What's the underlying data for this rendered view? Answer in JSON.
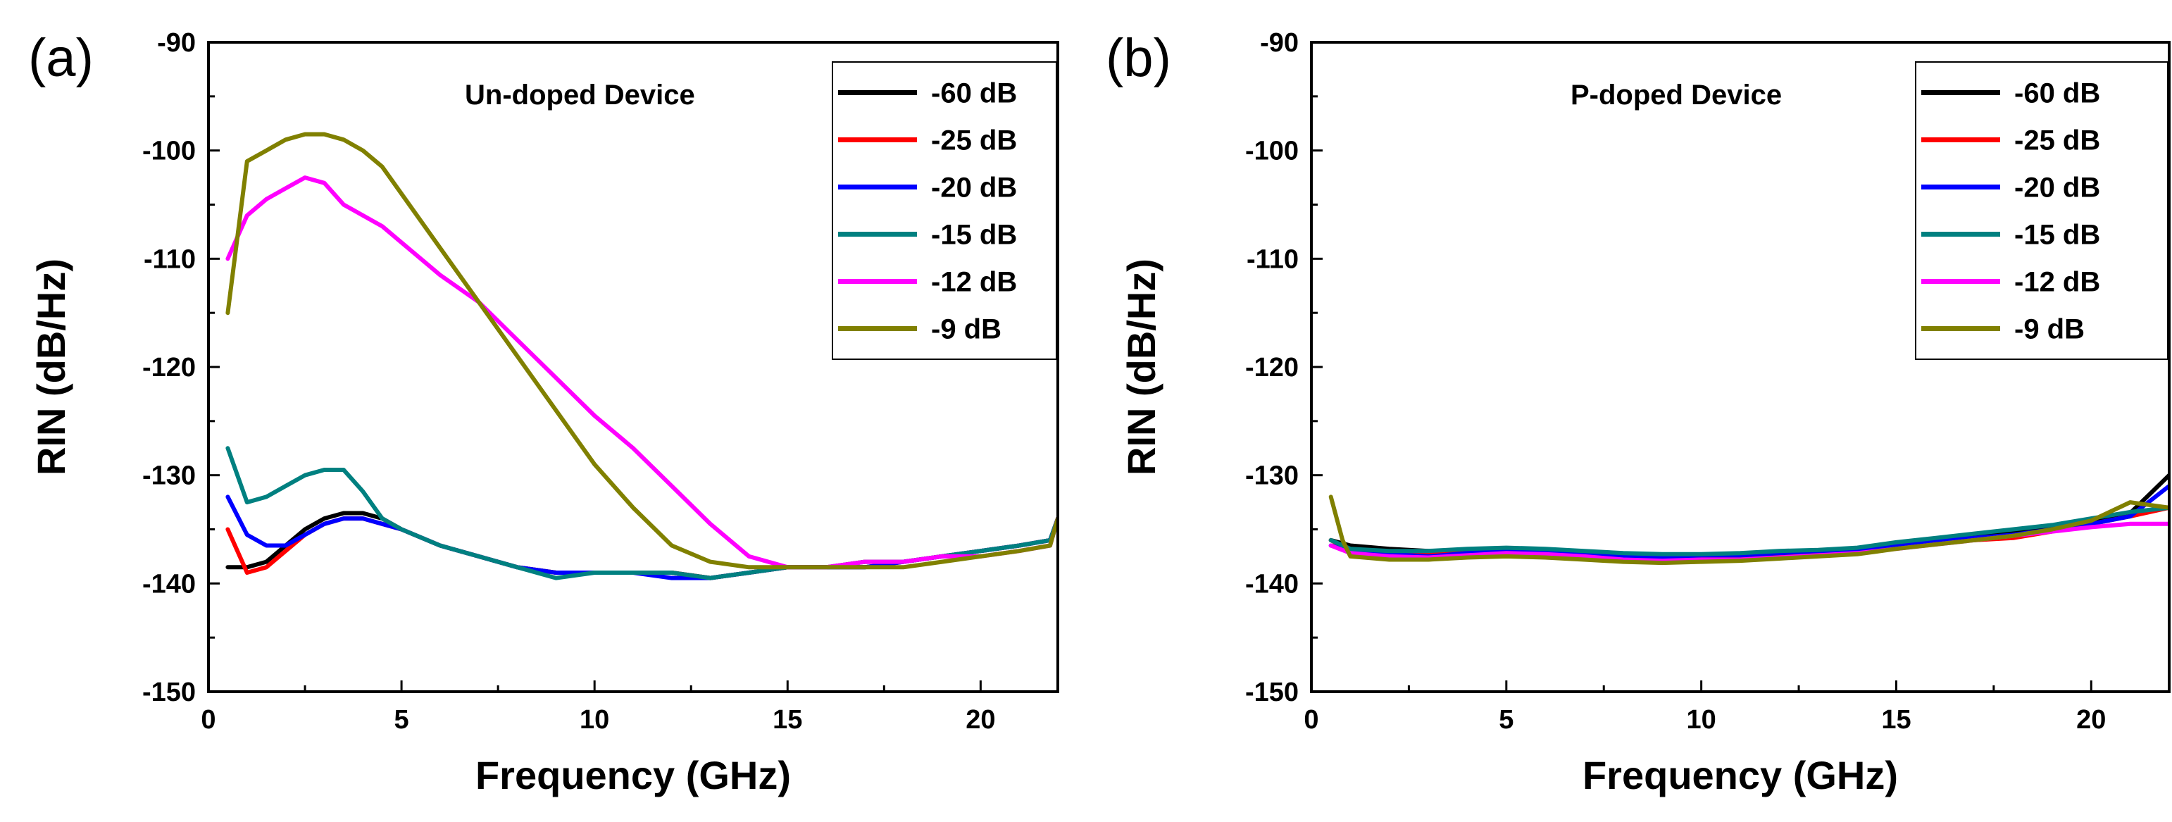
{
  "chart_data": [
    {
      "type": "line",
      "panel_label": "(a)",
      "annotation": "Un-doped Device",
      "xlabel": "Frequency (GHz)",
      "ylabel": "RIN (dB/Hz)",
      "xlim": [
        0,
        22
      ],
      "ylim": [
        -150,
        -90
      ],
      "xticks": [
        0,
        5,
        10,
        15,
        20
      ],
      "yticks": [
        -150,
        -140,
        -130,
        -120,
        -110,
        -100,
        -90
      ],
      "grid": false,
      "legend_position": "top-right",
      "series": [
        {
          "name": "-60 dB",
          "color": "#000000",
          "x": [
            0.5,
            1,
            1.5,
            2,
            2.5,
            3,
            3.5,
            4,
            4.5,
            5,
            6,
            7,
            8,
            9,
            10,
            11,
            12,
            13,
            14,
            15,
            16,
            17,
            18,
            19,
            20,
            21,
            21.8,
            22
          ],
          "y": [
            -138.5,
            -138.5,
            -138,
            -136.5,
            -135,
            -134,
            -133.5,
            -133.5,
            -134,
            -135,
            -136.5,
            -137.5,
            -138.5,
            -139,
            -139,
            -139,
            -139,
            -139.5,
            -139,
            -138.5,
            -138.5,
            -138.5,
            -138,
            -137.5,
            -137,
            -136.5,
            -136,
            -134
          ]
        },
        {
          "name": "-25 dB",
          "color": "#ff0000",
          "x": [
            0.5,
            1,
            1.5,
            2,
            2.5,
            3,
            3.5,
            4,
            4.5,
            5,
            6,
            7,
            8,
            9,
            10,
            11,
            12,
            13,
            14,
            15,
            16,
            17,
            18,
            19,
            20,
            21,
            21.8,
            22
          ],
          "y": [
            -135,
            -139,
            -138.5,
            -137,
            -135.5,
            -134.5,
            -134,
            -134,
            -134.5,
            -135,
            -136.5,
            -137.5,
            -138.5,
            -139,
            -139,
            -139,
            -139,
            -139.5,
            -139,
            -138.5,
            -138.5,
            -138,
            -138,
            -137.5,
            -137,
            -136.5,
            -136,
            -134
          ]
        },
        {
          "name": "-20 dB",
          "color": "#0000ff",
          "x": [
            0.5,
            1,
            1.5,
            2,
            2.5,
            3,
            3.5,
            4,
            4.5,
            5,
            6,
            7,
            8,
            9,
            10,
            11,
            12,
            13,
            14,
            15,
            16,
            17,
            18,
            19,
            20,
            21,
            21.8,
            22
          ],
          "y": [
            -132,
            -135.5,
            -136.5,
            -136.5,
            -135.5,
            -134.5,
            -134,
            -134,
            -134.5,
            -135,
            -136.5,
            -137.5,
            -138.5,
            -139,
            -139,
            -139,
            -139.5,
            -139.5,
            -139,
            -138.5,
            -138.5,
            -138.5,
            -138,
            -137.5,
            -137,
            -136.5,
            -136,
            -134
          ]
        },
        {
          "name": "-15 dB",
          "color": "#008080",
          "x": [
            0.5,
            1,
            1.5,
            2,
            2.5,
            3,
            3.5,
            4,
            4.5,
            5,
            6,
            7,
            8,
            9,
            10,
            11,
            12,
            13,
            14,
            15,
            16,
            17,
            18,
            19,
            20,
            21,
            21.8,
            22
          ],
          "y": [
            -127.5,
            -132.5,
            -132,
            -131,
            -130,
            -129.5,
            -129.5,
            -131.5,
            -134,
            -135,
            -136.5,
            -137.5,
            -138.5,
            -139.5,
            -139,
            -139,
            -139,
            -139.5,
            -139,
            -138.5,
            -138.5,
            -138,
            -138,
            -137.5,
            -137,
            -136.5,
            -136,
            -134
          ]
        },
        {
          "name": "-12 dB",
          "color": "#ff00ff",
          "x": [
            0.5,
            1,
            1.5,
            2,
            2.5,
            3,
            3.5,
            4,
            4.5,
            5,
            6,
            7,
            8,
            9,
            10,
            11,
            12,
            13,
            14,
            15,
            16,
            17,
            18,
            19,
            20,
            21,
            21.8,
            22
          ],
          "y": [
            -110,
            -106,
            -104.5,
            -103.5,
            -102.5,
            -103,
            -105,
            -106,
            -107,
            -108.5,
            -111.5,
            -114,
            -117.5,
            -121,
            -124.5,
            -127.5,
            -131,
            -134.5,
            -137.5,
            -138.5,
            -138.5,
            -138,
            -138,
            -137.5,
            -137.5,
            -137,
            -136.5,
            -134
          ]
        },
        {
          "name": "-9 dB",
          "color": "#808000",
          "x": [
            0.5,
            1,
            1.5,
            2,
            2.5,
            3,
            3.5,
            4,
            4.5,
            5,
            6,
            7,
            8,
            9,
            10,
            11,
            12,
            13,
            14,
            15,
            16,
            17,
            18,
            19,
            20,
            21,
            21.8,
            22
          ],
          "y": [
            -115,
            -101,
            -100,
            -99,
            -98.5,
            -98.5,
            -99,
            -100,
            -101.5,
            -104,
            -109,
            -114,
            -119,
            -124,
            -129,
            -133,
            -136.5,
            -138,
            -138.5,
            -138.5,
            -138.5,
            -138.5,
            -138.5,
            -138,
            -137.5,
            -137,
            -136.5,
            -134
          ]
        }
      ]
    },
    {
      "type": "line",
      "panel_label": "(b)",
      "annotation": "P-doped Device",
      "xlabel": "Frequency (GHz)",
      "ylabel": "RIN (dB/Hz)",
      "xlim": [
        0,
        22
      ],
      "ylim": [
        -150,
        -90
      ],
      "xticks": [
        0,
        5,
        10,
        15,
        20
      ],
      "yticks": [
        -150,
        -140,
        -130,
        -120,
        -110,
        -100,
        -90
      ],
      "grid": false,
      "legend_position": "top-right",
      "series": [
        {
          "name": "-60 dB",
          "color": "#000000",
          "x": [
            0.5,
            1,
            2,
            3,
            4,
            5,
            6,
            7,
            8,
            9,
            10,
            11,
            12,
            13,
            14,
            15,
            16,
            17,
            18,
            19,
            20,
            21,
            22
          ],
          "y": [
            -136,
            -136.5,
            -136.8,
            -137,
            -137,
            -136.8,
            -137,
            -137.2,
            -137.3,
            -137.5,
            -137.5,
            -137.4,
            -137.3,
            -137,
            -136.8,
            -136.3,
            -136,
            -135.6,
            -135.2,
            -134.8,
            -134.2,
            -133.5,
            -130
          ]
        },
        {
          "name": "-25 dB",
          "color": "#ff0000",
          "x": [
            0.5,
            1,
            2,
            3,
            4,
            5,
            6,
            7,
            8,
            9,
            10,
            11,
            12,
            13,
            14,
            15,
            16,
            17,
            18,
            19,
            20,
            21,
            22
          ],
          "y": [
            -136,
            -137,
            -137.2,
            -137.2,
            -137,
            -137,
            -137.2,
            -137.3,
            -137.5,
            -137.6,
            -137.5,
            -137.5,
            -137.3,
            -137.2,
            -137,
            -136.5,
            -136.2,
            -136,
            -135.8,
            -135.2,
            -134.5,
            -133.8,
            -133
          ]
        },
        {
          "name": "-20 dB",
          "color": "#0000ff",
          "x": [
            0.5,
            1,
            2,
            3,
            4,
            5,
            6,
            7,
            8,
            9,
            10,
            11,
            12,
            13,
            14,
            15,
            16,
            17,
            18,
            19,
            20,
            21,
            22
          ],
          "y": [
            -136.5,
            -137,
            -137.3,
            -137.5,
            -137.2,
            -137,
            -137,
            -137.2,
            -137.5,
            -137.6,
            -137.4,
            -137.4,
            -137.2,
            -137,
            -137,
            -136.5,
            -136,
            -135.8,
            -135.5,
            -135,
            -134.5,
            -133.8,
            -131
          ]
        },
        {
          "name": "-15 dB",
          "color": "#008080",
          "x": [
            0.5,
            1,
            2,
            3,
            4,
            5,
            6,
            7,
            8,
            9,
            10,
            11,
            12,
            13,
            14,
            15,
            16,
            17,
            18,
            19,
            20,
            21,
            22
          ],
          "y": [
            -136,
            -136.8,
            -137,
            -137,
            -136.8,
            -136.7,
            -136.8,
            -137,
            -137.2,
            -137.3,
            -137.3,
            -137.2,
            -137,
            -136.9,
            -136.7,
            -136.2,
            -135.8,
            -135.4,
            -135,
            -134.6,
            -134,
            -133.4,
            -133
          ]
        },
        {
          "name": "-12 dB",
          "color": "#ff00ff",
          "x": [
            0.5,
            1,
            2,
            3,
            4,
            5,
            6,
            7,
            8,
            9,
            10,
            11,
            12,
            13,
            14,
            15,
            16,
            17,
            18,
            19,
            20,
            21,
            22
          ],
          "y": [
            -136.5,
            -137.2,
            -137.5,
            -137.6,
            -137.4,
            -137.2,
            -137.3,
            -137.5,
            -137.8,
            -137.9,
            -137.8,
            -137.8,
            -137.6,
            -137.4,
            -137.2,
            -136.8,
            -136.4,
            -136,
            -135.6,
            -135.2,
            -134.8,
            -134.5,
            -134.5
          ]
        },
        {
          "name": "-9 dB",
          "color": "#808000",
          "x": [
            0.5,
            0.8,
            1,
            2,
            3,
            4,
            5,
            6,
            7,
            8,
            9,
            10,
            11,
            12,
            13,
            14,
            15,
            16,
            17,
            18,
            19,
            20,
            21,
            22
          ],
          "y": [
            -132,
            -136,
            -137.5,
            -137.8,
            -137.8,
            -137.6,
            -137.5,
            -137.6,
            -137.8,
            -138,
            -138.1,
            -138,
            -137.9,
            -137.7,
            -137.5,
            -137.3,
            -136.8,
            -136.4,
            -136,
            -135.6,
            -135,
            -134.2,
            -132.5,
            -133
          ]
        }
      ]
    }
  ]
}
